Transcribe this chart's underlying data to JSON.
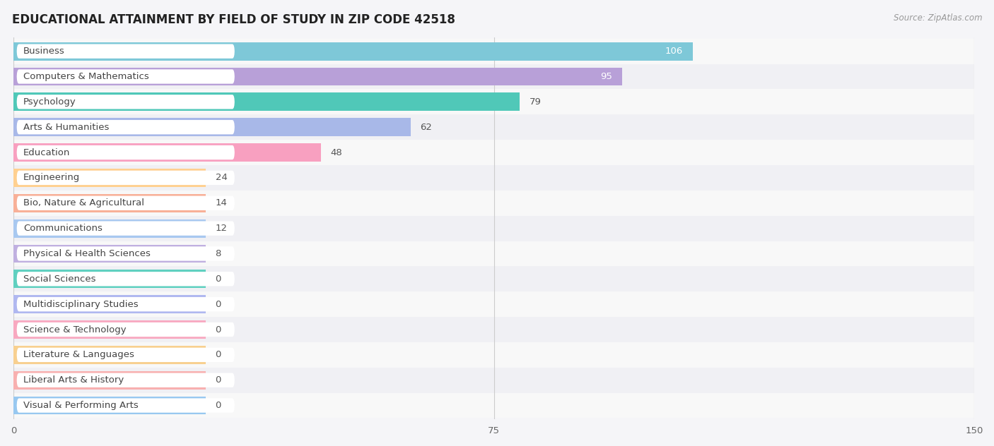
{
  "title": "EDUCATIONAL ATTAINMENT BY FIELD OF STUDY IN ZIP CODE 42518",
  "source_text": "Source: ZipAtlas.com",
  "categories": [
    "Business",
    "Computers & Mathematics",
    "Psychology",
    "Arts & Humanities",
    "Education",
    "Engineering",
    "Bio, Nature & Agricultural",
    "Communications",
    "Physical & Health Sciences",
    "Social Sciences",
    "Multidisciplinary Studies",
    "Science & Technology",
    "Literature & Languages",
    "Liberal Arts & History",
    "Visual & Performing Arts"
  ],
  "values": [
    106,
    95,
    79,
    62,
    48,
    24,
    14,
    12,
    8,
    0,
    0,
    0,
    0,
    0,
    0
  ],
  "bar_colors": [
    "#7ec8d8",
    "#b8a0d8",
    "#50c8b8",
    "#a8b8e8",
    "#f8a0c0",
    "#ffd090",
    "#f8b098",
    "#a8c8f0",
    "#c0b0e0",
    "#60d0c0",
    "#b0b8f0",
    "#f8a8c0",
    "#f8d090",
    "#f8b0b0",
    "#98c8f0"
  ],
  "value_inside_bar": [
    true,
    true,
    false,
    false,
    false,
    false,
    false,
    false,
    false,
    false,
    false,
    false,
    false,
    false,
    false
  ],
  "xlim": [
    0,
    150
  ],
  "xticks": [
    0,
    75,
    150
  ],
  "row_colors": [
    "#f8f8f8",
    "#f0f0f4"
  ],
  "background_color": "#f5f5f8",
  "title_fontsize": 12,
  "label_fontsize": 9.5,
  "value_fontsize": 9.5,
  "min_bar_width": 30
}
